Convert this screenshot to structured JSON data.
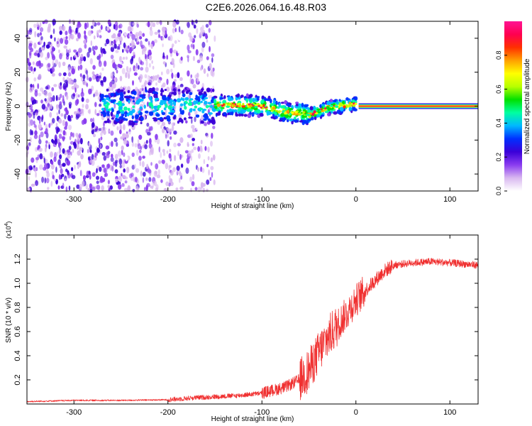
{
  "page": {
    "title": "C2E6.2026.064.16.48.R03"
  },
  "chart_data": [
    {
      "id": "spectrogram",
      "type": "heatmap",
      "title": "C2E6.2026.064.16.48.R03",
      "xlabel": "Height of straight line (km)",
      "ylabel": "Frequency (Hz)",
      "xlim": [
        -350,
        130
      ],
      "ylim": [
        -50,
        50
      ],
      "x_ticks": [
        -300,
        -200,
        -100,
        0,
        100
      ],
      "x_tick_labels": [
        "-300",
        "-200",
        "-100",
        "0",
        "100"
      ],
      "y_ticks": [
        -40,
        -20,
        0,
        20,
        40
      ],
      "y_tick_labels": [
        "-40",
        "-20",
        "0",
        "20",
        "40"
      ],
      "colorbar": {
        "label": "Normalized spectral amplitude",
        "range": [
          0,
          1
        ],
        "ticks": [
          0.0,
          0.2,
          0.4,
          0.6,
          0.8
        ],
        "tick_labels": [
          "0.0",
          "0.2",
          "0.4",
          "0.6",
          "0.8"
        ],
        "colors": [
          "#ffffff",
          "#d9b8f0",
          "#8a3cf0",
          "#3a00d8",
          "#0030ff",
          "#00b8ff",
          "#00ffa0",
          "#00e000",
          "#b8ff00",
          "#ffff00",
          "#ffa000",
          "#ff3000",
          "#ff0050",
          "#ff1493"
        ]
      },
      "ridge": [
        {
          "x": -260,
          "y": 0.0
        },
        {
          "x": -240,
          "y": -1.0
        },
        {
          "x": -220,
          "y": 0.5
        },
        {
          "x": -200,
          "y": -0.5
        },
        {
          "x": -180,
          "y": 0.5
        },
        {
          "x": -160,
          "y": 0.0
        },
        {
          "x": -140,
          "y": 0.5
        },
        {
          "x": -120,
          "y": 0.5
        },
        {
          "x": -100,
          "y": 0.0
        },
        {
          "x": -90,
          "y": -1.0
        },
        {
          "x": -80,
          "y": -3.0
        },
        {
          "x": -70,
          "y": -4.0
        },
        {
          "x": -60,
          "y": -4.0
        },
        {
          "x": -50,
          "y": -5.0
        },
        {
          "x": -40,
          "y": -3.0
        },
        {
          "x": -30,
          "y": -1.0
        },
        {
          "x": -20,
          "y": 0.0
        },
        {
          "x": -10,
          "y": 0.5
        },
        {
          "x": 0,
          "y": 1.0
        },
        {
          "x": 5,
          "y": 0.0
        },
        {
          "x": 130,
          "y": 0.0
        }
      ]
    },
    {
      "id": "snr",
      "type": "line",
      "xlabel": "Height of straight line (km)",
      "ylabel": "SNR (10 * v/v)",
      "y_multiplier_label": "(x10",
      "y_multiplier_exp": "4",
      "xlim": [
        -350,
        130
      ],
      "ylim": [
        0,
        1.4
      ],
      "x_ticks": [
        -300,
        -200,
        -100,
        0,
        100
      ],
      "x_tick_labels": [
        "-300",
        "-200",
        "-100",
        "0",
        "100"
      ],
      "y_ticks": [
        0.2,
        0.4,
        0.6,
        0.8,
        1.0,
        1.2
      ],
      "y_tick_labels": [
        "0.2",
        "0.4",
        "0.6",
        "0.8",
        "1.0",
        "1.2"
      ],
      "color": "#f03030",
      "series": [
        {
          "name": "SNR",
          "x": [
            -350,
            -300,
            -250,
            -200,
            -175,
            -150,
            -125,
            -100,
            -75,
            -60,
            -50,
            -40,
            -30,
            -20,
            -10,
            0,
            10,
            20,
            30,
            40,
            60,
            80,
            100,
            130
          ],
          "y": [
            0.02,
            0.03,
            0.03,
            0.035,
            0.05,
            0.06,
            0.07,
            0.09,
            0.14,
            0.2,
            0.28,
            0.42,
            0.55,
            0.65,
            0.75,
            0.86,
            0.94,
            1.02,
            1.1,
            1.15,
            1.17,
            1.18,
            1.17,
            1.15
          ]
        }
      ]
    }
  ]
}
